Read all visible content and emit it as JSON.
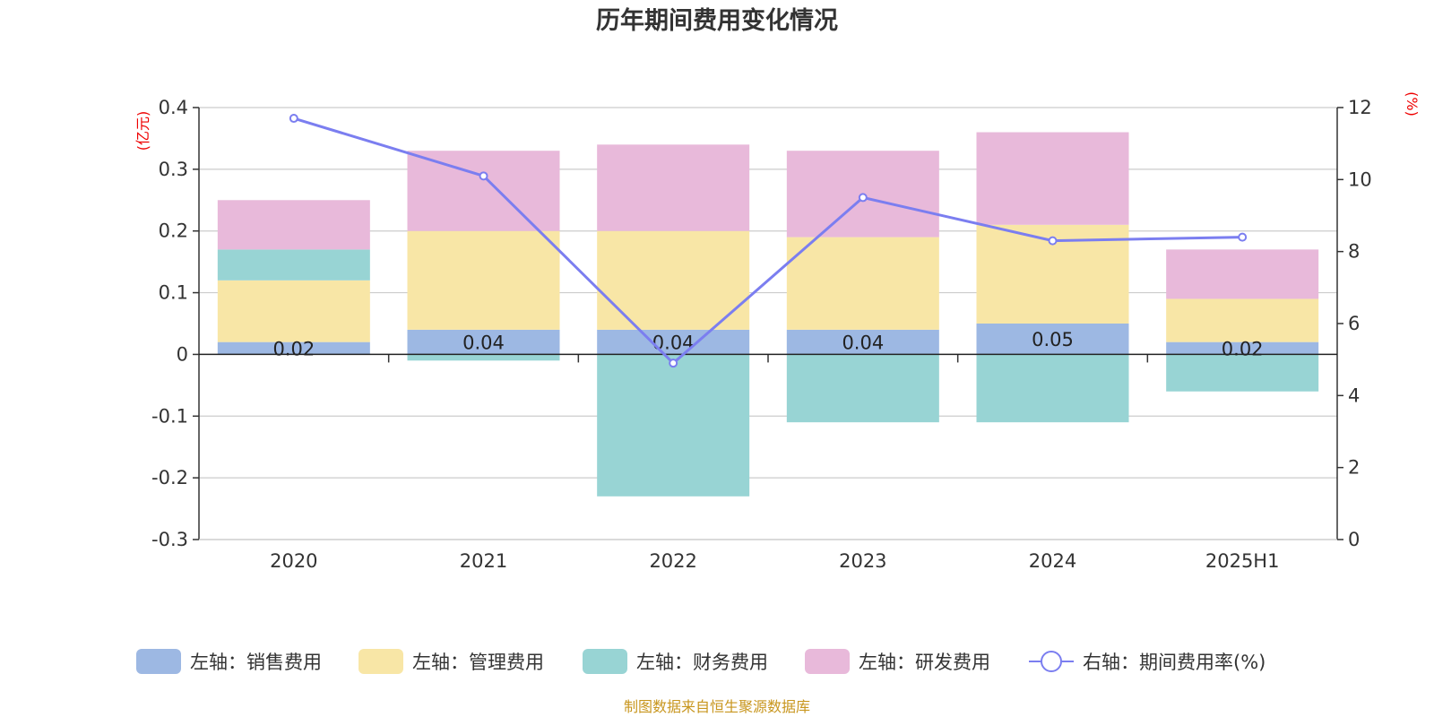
{
  "chart_data": {
    "type": "bar",
    "title": "历年期间费用变化情况",
    "categories": [
      "2020",
      "2021",
      "2022",
      "2023",
      "2024",
      "2025H1"
    ],
    "left_axis": {
      "unit_label": "(亿元)",
      "ylim": [
        -0.3,
        0.4
      ],
      "ticks": [
        -0.3,
        -0.2,
        -0.1,
        0,
        0.1,
        0.2,
        0.3,
        0.4
      ]
    },
    "right_axis": {
      "unit_label": "(%)",
      "ylim": [
        0,
        12
      ],
      "ticks": [
        0,
        2,
        4,
        6,
        8,
        10,
        12
      ]
    },
    "series": [
      {
        "name": "销售费用",
        "legend": "左轴：销售费用",
        "axis": "left",
        "kind": "bar",
        "color": "#9db8e3",
        "values": [
          0.02,
          0.04,
          0.04,
          0.04,
          0.05,
          0.02
        ],
        "data_labels": [
          "0.02",
          "0.04",
          "0.04",
          "0.04",
          "0.05",
          "0.02"
        ]
      },
      {
        "name": "管理费用",
        "legend": "左轴：管理费用",
        "axis": "left",
        "kind": "bar",
        "color": "#f8e6a6",
        "values": [
          0.1,
          0.16,
          0.16,
          0.15,
          0.16,
          0.07
        ]
      },
      {
        "name": "财务费用",
        "legend": "左轴：财务费用",
        "axis": "left",
        "kind": "bar",
        "color": "#98d4d4",
        "values": [
          0.05,
          -0.01,
          -0.23,
          -0.11,
          -0.11,
          -0.06
        ]
      },
      {
        "name": "研发费用",
        "legend": "左轴：研发费用",
        "axis": "left",
        "kind": "bar",
        "color": "#e8b9da",
        "values": [
          0.08,
          0.13,
          0.14,
          0.14,
          0.15,
          0.08
        ]
      },
      {
        "name": "期间费用率(%)",
        "legend": "右轴：期间费用率(%)",
        "axis": "right",
        "kind": "line",
        "color": "#7b7ef0",
        "values": [
          11.7,
          10.1,
          4.9,
          9.5,
          8.3,
          8.4
        ]
      }
    ],
    "grid": true,
    "legend_position": "bottom",
    "source": "制图数据来自恒生聚源数据库"
  }
}
